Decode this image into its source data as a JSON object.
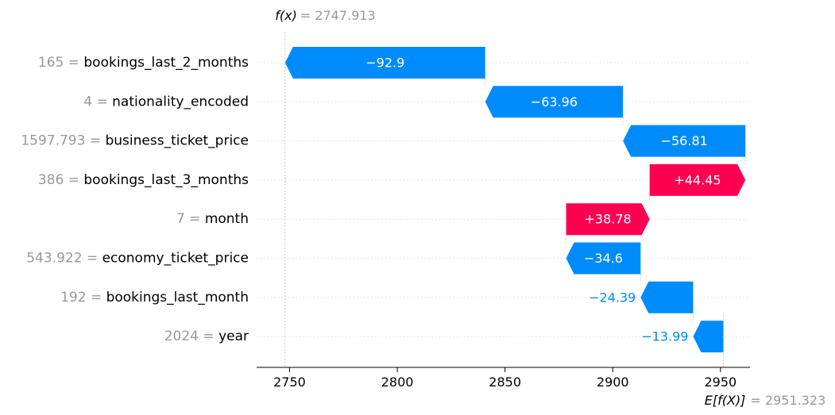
{
  "chart_data": {
    "type": "waterfall",
    "fx_label": "f(x)",
    "fx_value": "2747.913",
    "base_label": "E[f(X)]",
    "base_value_text": "2951.323",
    "base_value": 2951.323,
    "final_value": 2747.913,
    "xlim": [
      2734.7,
      2963.7
    ],
    "xticks": [
      2750,
      2800,
      2850,
      2900,
      2950
    ],
    "features": [
      {
        "value": "165",
        "name": "bookings_last_2_months",
        "contribution": -92.9,
        "label": "−92.9"
      },
      {
        "value": "4",
        "name": "nationality_encoded",
        "contribution": -63.96,
        "label": "−63.96"
      },
      {
        "value": "1597.793",
        "name": "business_ticket_price",
        "contribution": -56.81,
        "label": "−56.81"
      },
      {
        "value": "386",
        "name": "bookings_last_3_months",
        "contribution": 44.45,
        "label": "+44.45"
      },
      {
        "value": "7",
        "name": "month",
        "contribution": 38.78,
        "label": "+38.78"
      },
      {
        "value": "543.922",
        "name": "economy_ticket_price",
        "contribution": -34.6,
        "label": "−34.6"
      },
      {
        "value": "192",
        "name": "bookings_last_month",
        "contribution": -24.39,
        "label": "−24.39"
      },
      {
        "value": "2024",
        "name": "year",
        "contribution": -13.99,
        "label": "−13.99"
      }
    ],
    "colors": {
      "negative": "#008bfb",
      "positive": "#ff0051",
      "feature_value": "#999999",
      "text": "#000000"
    }
  }
}
